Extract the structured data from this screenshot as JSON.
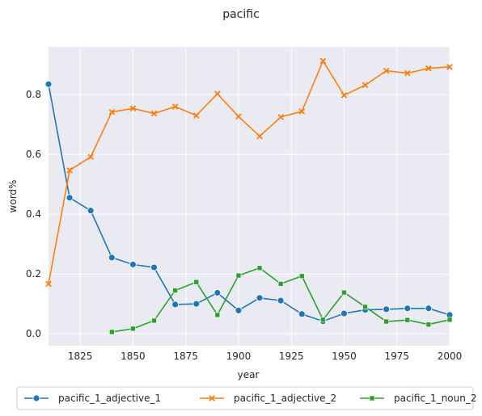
{
  "chart_data": {
    "type": "line",
    "title": "pacific",
    "xlabel": "year",
    "ylabel": "word%",
    "xlim": [
      1810,
      2000
    ],
    "ylim": [
      -0.04,
      0.96
    ],
    "x_ticks": [
      1825,
      1850,
      1875,
      1900,
      1925,
      1950,
      1975,
      2000
    ],
    "y_ticks": [
      0.0,
      0.2,
      0.4,
      0.6,
      0.8
    ],
    "y_tick_labels": [
      "0.0",
      "0.2",
      "0.4",
      "0.6",
      "0.8"
    ],
    "grid": true,
    "legend_position": "bottom",
    "background": "#eaeaf2",
    "series": [
      {
        "name": "pacific_1_adjective_1",
        "color": "#1f77b4",
        "marker": "circle",
        "x": [
          1810,
          1820,
          1830,
          1840,
          1850,
          1860,
          1870,
          1880,
          1890,
          1900,
          1910,
          1920,
          1930,
          1940,
          1950,
          1960,
          1970,
          1980,
          1990,
          2000
        ],
        "y": [
          0.835,
          0.455,
          0.412,
          0.255,
          0.232,
          0.222,
          0.098,
          0.1,
          0.137,
          0.078,
          0.12,
          0.111,
          0.066,
          0.042,
          0.068,
          0.08,
          0.082,
          0.085,
          0.085,
          0.063
        ]
      },
      {
        "name": "pacific_1_adjective_2",
        "color": "#ff7f0e",
        "marker": "x",
        "x": [
          1810,
          1820,
          1830,
          1840,
          1850,
          1860,
          1870,
          1880,
          1890,
          1900,
          1910,
          1920,
          1930,
          1940,
          1950,
          1960,
          1970,
          1980,
          1990,
          2000
        ],
        "y": [
          0.167,
          0.547,
          0.592,
          0.742,
          0.754,
          0.737,
          0.76,
          0.73,
          0.803,
          0.727,
          0.661,
          0.725,
          0.744,
          0.913,
          0.798,
          0.832,
          0.88,
          0.872,
          0.888,
          0.893
        ]
      },
      {
        "name": "pacific_1_noun_2",
        "color": "#2ca02c",
        "marker": "square",
        "x": [
          1840,
          1850,
          1860,
          1870,
          1880,
          1890,
          1900,
          1910,
          1920,
          1930,
          1940,
          1950,
          1960,
          1970,
          1980,
          1990,
          2000
        ],
        "y": [
          0.006,
          0.017,
          0.044,
          0.145,
          0.173,
          0.063,
          0.195,
          0.22,
          0.167,
          0.193,
          0.047,
          0.138,
          0.09,
          0.041,
          0.046,
          0.031,
          0.047
        ]
      }
    ]
  }
}
